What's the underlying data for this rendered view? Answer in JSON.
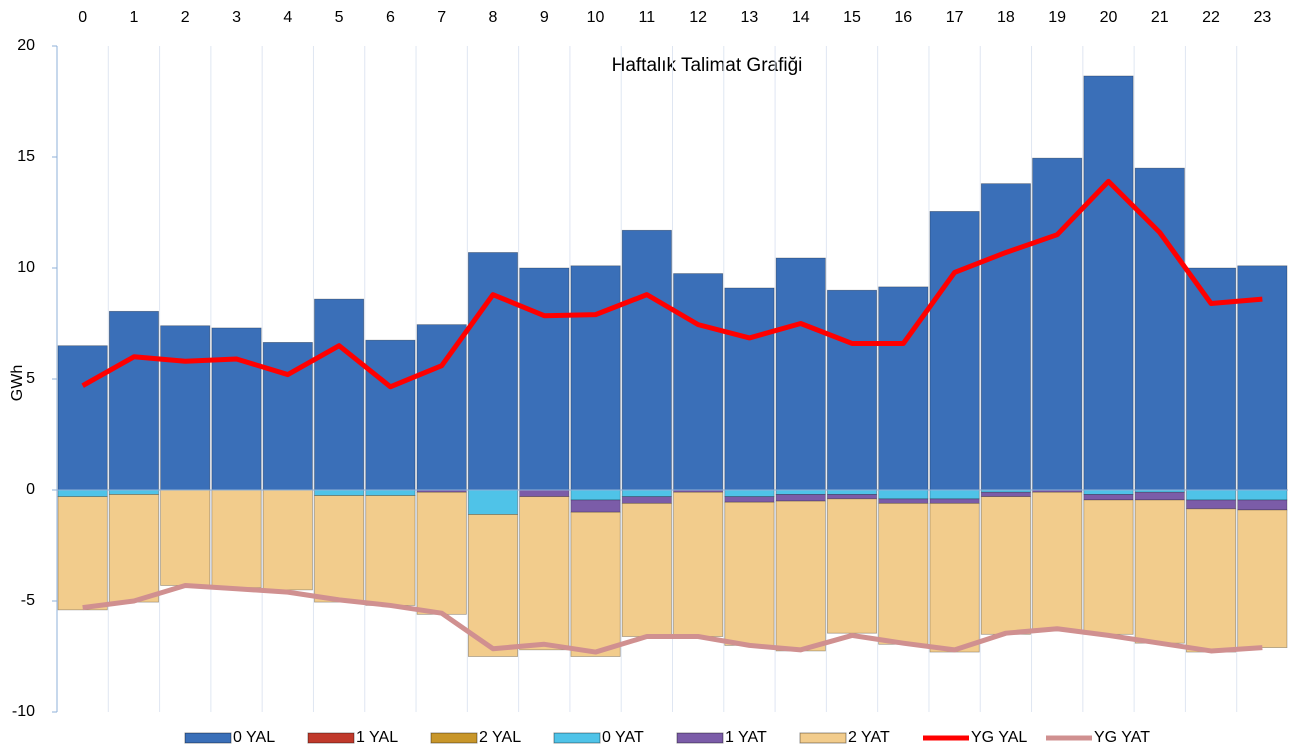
{
  "chart_data": {
    "type": "bar",
    "title": "Haftalık Talimat Grafiği",
    "y_label": "GWh",
    "categories": [
      "0",
      "1",
      "2",
      "3",
      "4",
      "5",
      "6",
      "7",
      "8",
      "9",
      "10",
      "11",
      "12",
      "13",
      "14",
      "15",
      "16",
      "17",
      "18",
      "19",
      "20",
      "21",
      "22",
      "23"
    ],
    "ylim": [
      -10,
      20
    ],
    "yticks": [
      -10,
      -5,
      0,
      5,
      10,
      15,
      20
    ],
    "legend": "bottom",
    "series": [
      {
        "name": "0 YAL",
        "type": "bar",
        "color": "#3a6fb8",
        "values": [
          6.5,
          8.05,
          7.4,
          7.3,
          6.65,
          8.6,
          6.75,
          7.45,
          10.7,
          10.0,
          10.1,
          11.7,
          9.75,
          9.1,
          10.45,
          9.0,
          9.15,
          12.55,
          13.8,
          14.95,
          18.65,
          14.5,
          10.0,
          10.1
        ]
      },
      {
        "name": "1 YAL",
        "type": "bar",
        "color": "#c0392b",
        "values": [
          0,
          0,
          0,
          0,
          0,
          0,
          0,
          0,
          0,
          0,
          0,
          0,
          0,
          0,
          0,
          0,
          0,
          0,
          0,
          0,
          0,
          0,
          0,
          0
        ]
      },
      {
        "name": "2 YAL",
        "type": "bar",
        "color": "#c8962a",
        "values": [
          0,
          0,
          0,
          0,
          0,
          0,
          0,
          0,
          0,
          0,
          0,
          0,
          0,
          0,
          0,
          0,
          0,
          0,
          0,
          0,
          0,
          0,
          0,
          0
        ]
      },
      {
        "name": "0 YAT",
        "type": "bar",
        "color": "#4fc3e8",
        "values": [
          -0.3,
          -0.2,
          0,
          0,
          0,
          -0.25,
          -0.25,
          0,
          -1.1,
          0,
          -0.45,
          -0.3,
          0,
          -0.3,
          -0.2,
          -0.2,
          -0.4,
          -0.4,
          -0.1,
          0,
          -0.2,
          -0.1,
          -0.45,
          -0.45
        ]
      },
      {
        "name": "1 YAT",
        "type": "bar",
        "color": "#7b5ca8",
        "values": [
          0,
          0,
          0,
          0,
          0,
          0,
          0,
          -0.1,
          0,
          -0.3,
          -0.55,
          -0.3,
          -0.1,
          -0.25,
          -0.3,
          -0.2,
          -0.2,
          -0.2,
          -0.2,
          -0.1,
          -0.25,
          -0.35,
          -0.4,
          -0.45
        ]
      },
      {
        "name": "2 YAT",
        "type": "bar",
        "color": "#f2cc8c",
        "values": [
          -5.1,
          -4.85,
          -4.3,
          -4.4,
          -4.5,
          -4.8,
          -4.95,
          -5.5,
          -6.4,
          -6.9,
          -6.5,
          -6.0,
          -6.5,
          -6.45,
          -6.75,
          -6.05,
          -6.35,
          -6.7,
          -6.2,
          -6.25,
          -6.05,
          -6.45,
          -6.45,
          -6.2
        ]
      },
      {
        "name": "YG YAL",
        "type": "line",
        "color": "#ff0000",
        "values": [
          4.7,
          6.0,
          5.8,
          5.9,
          5.2,
          6.5,
          4.65,
          5.6,
          8.8,
          7.85,
          7.9,
          8.8,
          7.45,
          6.85,
          7.5,
          6.6,
          6.6,
          9.8,
          10.7,
          11.5,
          13.9,
          11.6,
          8.4,
          8.6
        ]
      },
      {
        "name": "YG YAT",
        "type": "line",
        "color": "#d09090",
        "values": [
          -5.3,
          -5.0,
          -4.3,
          -4.45,
          -4.6,
          -4.95,
          -5.2,
          -5.55,
          -7.15,
          -6.95,
          -7.3,
          -6.6,
          -6.6,
          -7.0,
          -7.2,
          -6.55,
          -6.9,
          -7.2,
          -6.45,
          -6.25,
          -6.55,
          -6.9,
          -7.25,
          -7.1
        ]
      }
    ]
  }
}
